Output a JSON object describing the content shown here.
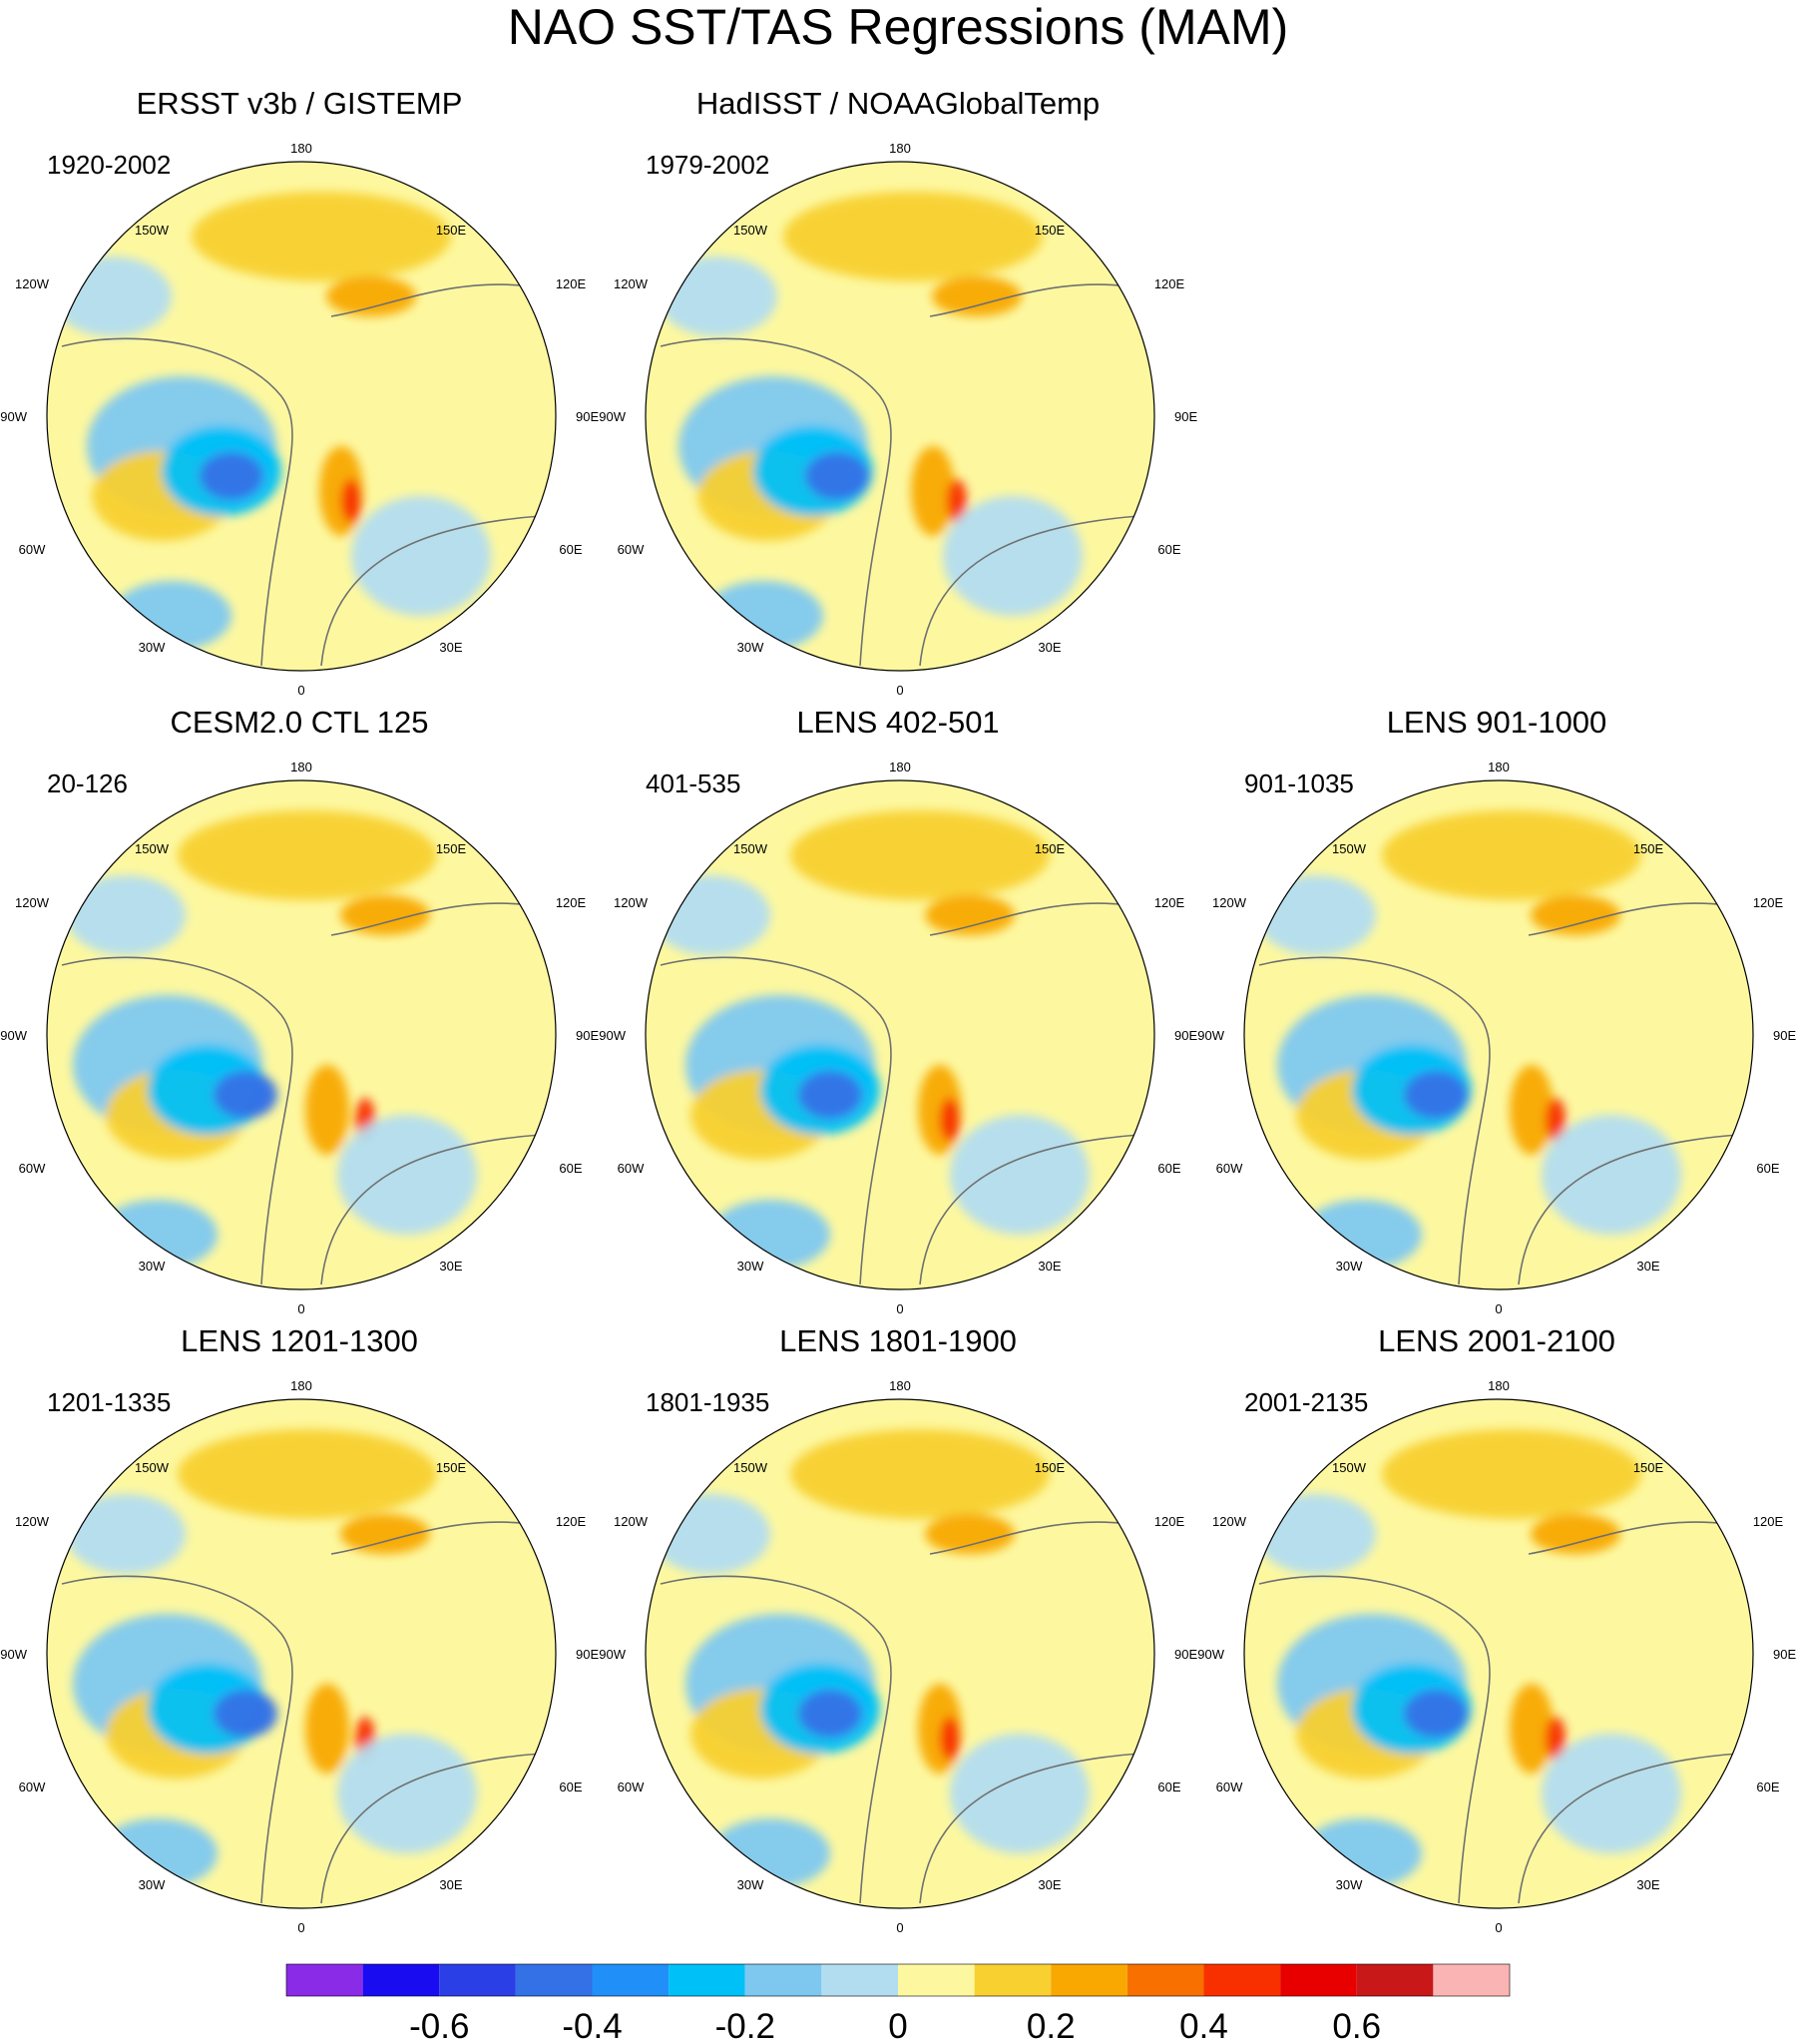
{
  "figure": {
    "title": "NAO SST/TAS Regressions (MAM)",
    "longitude_labels": {
      "top": "180",
      "bottom": "0",
      "upper_left": "150W",
      "upper_right": "150E",
      "left_upper": "120W",
      "right_upper": "120E",
      "left_mid": "90W",
      "right_mid": "90E",
      "left_lower": "60W",
      "right_lower": "60E",
      "lower_left": "30W",
      "lower_right": "30E"
    }
  },
  "panels": [
    {
      "title": "ERSST v3b / GISTEMP",
      "period": "1920-2002"
    },
    {
      "title": "HadISST / NOAAGlobalTemp",
      "period": "1979-2002"
    },
    {
      "title": "CESM2.0 CTL 125",
      "period": "20-126"
    },
    {
      "title": "LENS 402-501",
      "period": "401-535"
    },
    {
      "title": "LENS 901-1000",
      "period": "901-1035"
    },
    {
      "title": "LENS 1201-1300",
      "period": "1201-1335"
    },
    {
      "title": "LENS 1801-1900",
      "period": "1801-1935"
    },
    {
      "title": "LENS 2001-2100",
      "period": "2001-2135"
    }
  ],
  "colorbar": {
    "colors": [
      "#8a2be8",
      "#1a0cf0",
      "#2a40e6",
      "#3470e6",
      "#2090f8",
      "#00c0f8",
      "#7ec8f0",
      "#b2dcf0",
      "#fdf8a0",
      "#f8d030",
      "#f8a800",
      "#f87000",
      "#f83000",
      "#e80000",
      "#c81818",
      "#fbb4b4"
    ],
    "tick_labels": [
      "-0.6",
      "-0.4",
      "-0.2",
      "0",
      "0.2",
      "0.4",
      "0.6"
    ],
    "tick_values": [
      -0.6,
      -0.4,
      -0.2,
      0,
      0.2,
      0.4,
      0.6
    ]
  }
}
